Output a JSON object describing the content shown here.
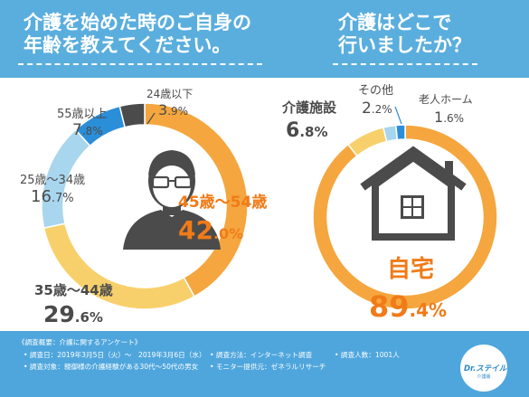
{
  "header": {
    "q1_title": "介護を始めた時のご自身の\n年齢を教えてください。",
    "q2_title": "介護はどこで\n行いましたか？"
  },
  "colors": {
    "title_blue": "#5aaede",
    "orange": "#f5a63e",
    "yellow": "#f8d06b",
    "light_blue": "#a7d6ee",
    "blue": "#2b8ed9",
    "dark": "#4b4b4b",
    "orange_text": "#f07b18",
    "gray_text": "#4b4b4b"
  },
  "chart_data": [
    {
      "type": "pie",
      "title": "介護を始めた時のご自身の年齢を教えてください。",
      "slices": [
        {
          "label": "45歳〜54歳",
          "value": 42.0,
          "num": "42",
          "dec": ".0%",
          "color": "#f5a63e"
        },
        {
          "label": "35歳〜44歳",
          "value": 29.6,
          "num": "29",
          "dec": ".6%",
          "color": "#f8d06b"
        },
        {
          "label": "25歳〜34歳",
          "value": 16.7,
          "num": "16",
          "dec": ".7%",
          "color": "#a7d6ee"
        },
        {
          "label": "55歳以上",
          "value": 7.8,
          "num": "7",
          "dec": ".8%",
          "color": "#2b8ed9"
        },
        {
          "label": "24歳以下",
          "value": 3.9,
          "num": "3",
          "dec": ".9%",
          "color": "#4b4b4b"
        }
      ]
    },
    {
      "type": "pie",
      "title": "介護はどこで行いましたか？",
      "slices": [
        {
          "label": "自宅",
          "value": 89.4,
          "num": "89",
          "dec": ".4%",
          "color": "#f5a63e"
        },
        {
          "label": "介護施設",
          "value": 6.8,
          "num": "6",
          "dec": ".8%",
          "color": "#f8d06b"
        },
        {
          "label": "その他",
          "value": 2.2,
          "num": "2",
          "dec": ".2%",
          "color": "#a7d6ee"
        },
        {
          "label": "老人ホーム",
          "value": 1.6,
          "num": "1",
          "dec": ".6%",
          "color": "#2b8ed9"
        }
      ]
    }
  ],
  "footer": {
    "survey_title": "《調査概要：介護に関するアンケート》",
    "date": "• 調査日：2019年3月5日（火）〜　2019年3月6日（水）",
    "target": "• 調査対象：親御様の介護経験がある30代〜50代の男女",
    "method": "• 調査方法：インターネット調査",
    "count": "• 調査人数：1001人",
    "provider": "• モニター提供元：ゼネラルリサーチ",
    "logo_text": "Dr.ステイル",
    "logo_sub": "介護版"
  }
}
